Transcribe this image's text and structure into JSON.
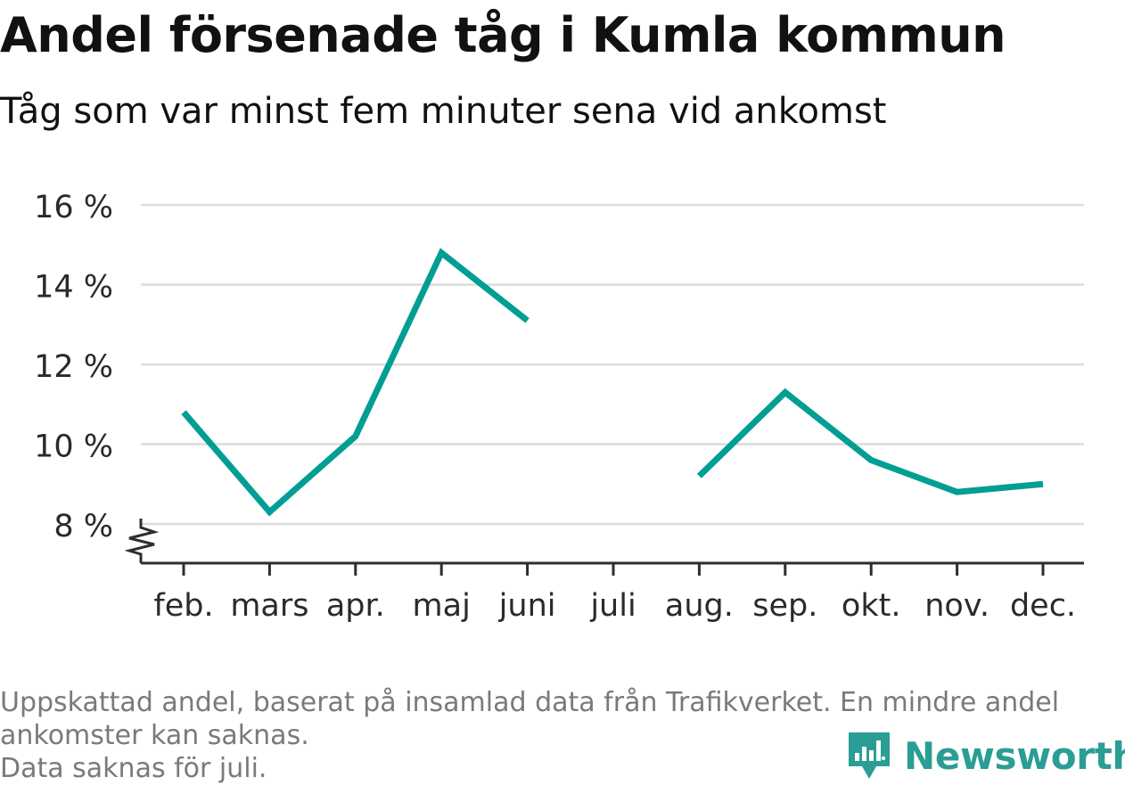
{
  "chart_data": {
    "type": "line",
    "title": "Andel försenade tåg i Kumla kommun",
    "subtitle": "Tåg som var minst fem minuter sena vid ankomst",
    "categories": [
      "feb.",
      "mars",
      "apr.",
      "maj",
      "juni",
      "juli",
      "aug.",
      "sep.",
      "okt.",
      "nov.",
      "dec."
    ],
    "series": [
      {
        "values": [
          10.8,
          8.3,
          10.2,
          14.8,
          13.1,
          null,
          9.2,
          11.3,
          9.6,
          8.8,
          9.0
        ]
      }
    ],
    "y_ticks": [
      8,
      10,
      12,
      14,
      16
    ],
    "y_tick_labels": [
      "8 %",
      "10 %",
      "12 %",
      "14 %",
      "16 %"
    ],
    "ylim": [
      7,
      16
    ],
    "y_axis_break": true,
    "grid": true,
    "line_color": "#009e93"
  },
  "footer": {
    "note_line1": "Uppskattad andel, baserat på insamlad data från Trafikverket. En mindre andel",
    "note_line2": "ankomster kan saknas.",
    "note_line3": "Data saknas för juli."
  },
  "brand": {
    "name": "Newsworthy",
    "icon": "newsworthy-logo-icon",
    "color": "#2a9d95"
  }
}
